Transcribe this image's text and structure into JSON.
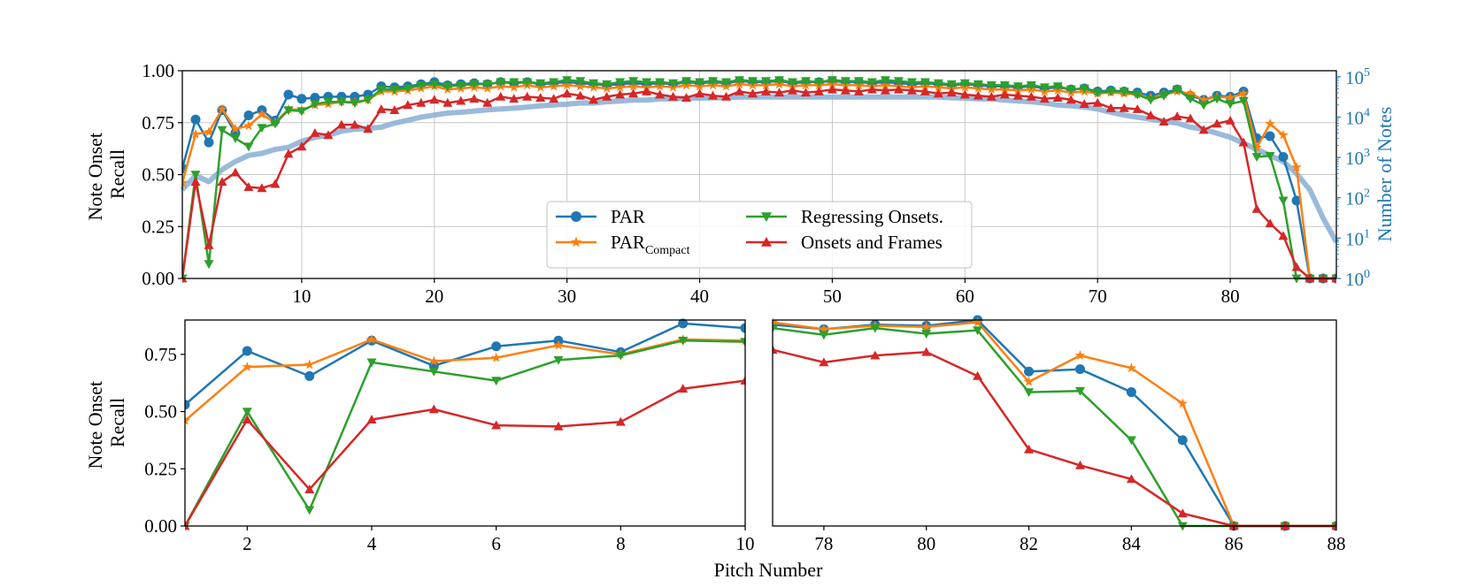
{
  "colors": {
    "par": "#1f77b4",
    "par_compact": "#ff7f0e",
    "regressing": "#2ca02c",
    "onsets_frames": "#d62728",
    "note_count": "#8fb3d6",
    "grid": "#c8c8c8"
  },
  "chart_data": [
    {
      "type": "line",
      "title": "",
      "xlabel": "",
      "ylabel": "Note Onset Recall",
      "ylabel_lines": [
        "Note Onset",
        "Recall"
      ],
      "y2label": "Number of Notes",
      "xlim": [
        1,
        88
      ],
      "ylim": [
        0,
        1
      ],
      "y2lim": [
        0,
        5.15
      ],
      "grid": true,
      "legend": "lower-center",
      "xticks": [
        10,
        20,
        30,
        40,
        50,
        60,
        70,
        80
      ],
      "yticks": [
        0.0,
        0.25,
        0.5,
        0.75,
        1.0
      ],
      "ytick_labels": [
        "0.00",
        "0.25",
        "0.50",
        "0.75",
        "1.00"
      ],
      "y2ticks": [
        {
          "exponent": 0,
          "base": "10",
          "power": "0"
        },
        {
          "exponent": 1,
          "base": "10",
          "power": "1"
        },
        {
          "exponent": 2,
          "base": "10",
          "power": "2"
        },
        {
          "exponent": 3,
          "base": "10",
          "power": "3"
        },
        {
          "exponent": 4,
          "base": "10",
          "power": "4"
        },
        {
          "exponent": 5,
          "base": "10",
          "power": "5"
        }
      ],
      "legend_entries": [
        {
          "key": "par",
          "label": "PAR",
          "sub": "",
          "marker": "circle"
        },
        {
          "key": "par_compact",
          "label": "PAR",
          "sub": "Compact",
          "marker": "star"
        },
        {
          "key": "regressing",
          "label": "Regressing Onsets.",
          "sub": "",
          "marker": "triangle-down"
        },
        {
          "key": "onsets_frames",
          "label": "Onsets and Frames",
          "sub": "",
          "marker": "triangle-up"
        }
      ],
      "note_count_log10": [
        2.2,
        2.55,
        2.4,
        2.7,
        2.9,
        3.05,
        3.1,
        3.2,
        3.25,
        3.4,
        3.5,
        3.55,
        3.65,
        3.7,
        3.72,
        3.75,
        3.85,
        3.92,
        4.0,
        4.05,
        4.1,
        4.12,
        4.15,
        4.18,
        4.2,
        4.22,
        4.25,
        4.28,
        4.3,
        4.32,
        4.35,
        4.35,
        4.38,
        4.4,
        4.42,
        4.42,
        4.45,
        4.45,
        4.47,
        4.47,
        4.48,
        4.48,
        4.5,
        4.5,
        4.5,
        4.5,
        4.5,
        4.5,
        4.5,
        4.5,
        4.5,
        4.5,
        4.5,
        4.5,
        4.5,
        4.5,
        4.5,
        4.5,
        4.48,
        4.47,
        4.45,
        4.45,
        4.42,
        4.4,
        4.38,
        4.35,
        4.3,
        4.28,
        4.25,
        4.2,
        4.12,
        4.05,
        4.0,
        3.95,
        3.9,
        3.85,
        3.75,
        3.7,
        3.6,
        3.5,
        3.35,
        3.2,
        3.05,
        2.9,
        2.6,
        2.2,
        1.5,
        0.9
      ]
    },
    {
      "type": "line",
      "title": "",
      "xlabel": "",
      "ylabel": "Note Onset Recall",
      "ylabel_lines": [
        "Note Onset",
        "Recall"
      ],
      "xlim": [
        1,
        10
      ],
      "ylim": [
        0,
        0.9
      ],
      "grid": false,
      "xticks": [
        2,
        4,
        6,
        8,
        10
      ],
      "yticks": [
        0.0,
        0.25,
        0.5,
        0.75
      ],
      "ytick_labels": [
        "0.00",
        "0.25",
        "0.50",
        "0.75"
      ]
    },
    {
      "type": "line",
      "title": "",
      "xlabel": "Pitch Number",
      "ylabel": "",
      "xlim": [
        77,
        88
      ],
      "ylim": [
        0,
        0.9
      ],
      "grid": false,
      "xticks": [
        78,
        80,
        82,
        84,
        86,
        88
      ],
      "yticks": [],
      "ytick_labels": []
    }
  ],
  "series": {
    "pitch": [
      1,
      2,
      3,
      4,
      5,
      6,
      7,
      8,
      9,
      10,
      11,
      12,
      13,
      14,
      15,
      16,
      17,
      18,
      19,
      20,
      21,
      22,
      23,
      24,
      25,
      26,
      27,
      28,
      29,
      30,
      31,
      32,
      33,
      34,
      35,
      36,
      37,
      38,
      39,
      40,
      41,
      42,
      43,
      44,
      45,
      46,
      47,
      48,
      49,
      50,
      51,
      52,
      53,
      54,
      55,
      56,
      57,
      58,
      59,
      60,
      61,
      62,
      63,
      64,
      65,
      66,
      67,
      68,
      69,
      70,
      71,
      72,
      73,
      74,
      75,
      76,
      77,
      78,
      79,
      80,
      81,
      82,
      83,
      84,
      85,
      86,
      87,
      88
    ],
    "par": [
      0.53,
      0.765,
      0.655,
      0.81,
      0.7,
      0.785,
      0.81,
      0.76,
      0.885,
      0.865,
      0.87,
      0.875,
      0.875,
      0.875,
      0.885,
      0.925,
      0.92,
      0.925,
      0.935,
      0.945,
      0.93,
      0.935,
      0.94,
      0.935,
      0.945,
      0.94,
      0.945,
      0.935,
      0.94,
      0.945,
      0.94,
      0.935,
      0.93,
      0.935,
      0.94,
      0.935,
      0.94,
      0.935,
      0.945,
      0.94,
      0.945,
      0.94,
      0.95,
      0.945,
      0.945,
      0.95,
      0.94,
      0.945,
      0.945,
      0.95,
      0.945,
      0.945,
      0.94,
      0.945,
      0.94,
      0.935,
      0.94,
      0.935,
      0.93,
      0.935,
      0.93,
      0.925,
      0.925,
      0.92,
      0.925,
      0.915,
      0.92,
      0.91,
      0.915,
      0.9,
      0.905,
      0.9,
      0.895,
      0.88,
      0.895,
      0.91,
      0.88,
      0.86,
      0.88,
      0.875,
      0.9,
      0.675,
      0.685,
      0.585,
      0.375,
      0.0,
      0.0,
      0.0
    ],
    "par_compact": [
      0.46,
      0.695,
      0.705,
      0.815,
      0.72,
      0.735,
      0.79,
      0.75,
      0.815,
      0.81,
      0.835,
      0.84,
      0.85,
      0.85,
      0.86,
      0.9,
      0.9,
      0.905,
      0.915,
      0.925,
      0.91,
      0.915,
      0.92,
      0.915,
      0.925,
      0.92,
      0.93,
      0.92,
      0.925,
      0.93,
      0.925,
      0.92,
      0.915,
      0.92,
      0.925,
      0.92,
      0.925,
      0.92,
      0.93,
      0.925,
      0.93,
      0.925,
      0.935,
      0.93,
      0.93,
      0.935,
      0.925,
      0.93,
      0.93,
      0.935,
      0.93,
      0.93,
      0.925,
      0.93,
      0.925,
      0.92,
      0.925,
      0.92,
      0.915,
      0.92,
      0.915,
      0.91,
      0.91,
      0.905,
      0.91,
      0.9,
      0.905,
      0.895,
      0.9,
      0.89,
      0.895,
      0.89,
      0.885,
      0.87,
      0.885,
      0.9,
      0.89,
      0.86,
      0.875,
      0.87,
      0.89,
      0.63,
      0.745,
      0.69,
      0.535,
      0.0,
      0.0,
      0.0
    ],
    "regressing": [
      0.0,
      0.5,
      0.07,
      0.715,
      0.675,
      0.635,
      0.725,
      0.745,
      0.81,
      0.805,
      0.84,
      0.85,
      0.85,
      0.845,
      0.86,
      0.91,
      0.91,
      0.915,
      0.93,
      0.935,
      0.925,
      0.93,
      0.935,
      0.935,
      0.945,
      0.945,
      0.945,
      0.94,
      0.945,
      0.955,
      0.95,
      0.94,
      0.935,
      0.945,
      0.95,
      0.945,
      0.945,
      0.94,
      0.95,
      0.945,
      0.95,
      0.945,
      0.955,
      0.95,
      0.95,
      0.955,
      0.945,
      0.95,
      0.945,
      0.955,
      0.95,
      0.95,
      0.945,
      0.955,
      0.95,
      0.945,
      0.945,
      0.94,
      0.935,
      0.94,
      0.935,
      0.93,
      0.93,
      0.925,
      0.93,
      0.92,
      0.925,
      0.91,
      0.915,
      0.895,
      0.9,
      0.9,
      0.885,
      0.86,
      0.88,
      0.91,
      0.865,
      0.835,
      0.865,
      0.84,
      0.855,
      0.585,
      0.59,
      0.375,
      0.0,
      0.0,
      0.0,
      0.0
    ],
    "onsets_frames": [
      0.0,
      0.465,
      0.16,
      0.465,
      0.51,
      0.44,
      0.435,
      0.455,
      0.6,
      0.635,
      0.7,
      0.69,
      0.74,
      0.74,
      0.72,
      0.815,
      0.81,
      0.835,
      0.845,
      0.86,
      0.845,
      0.855,
      0.865,
      0.845,
      0.875,
      0.865,
      0.875,
      0.87,
      0.865,
      0.89,
      0.88,
      0.86,
      0.875,
      0.885,
      0.89,
      0.9,
      0.885,
      0.875,
      0.87,
      0.89,
      0.88,
      0.875,
      0.9,
      0.89,
      0.9,
      0.895,
      0.905,
      0.895,
      0.9,
      0.91,
      0.905,
      0.9,
      0.91,
      0.905,
      0.91,
      0.905,
      0.9,
      0.89,
      0.895,
      0.885,
      0.88,
      0.875,
      0.885,
      0.88,
      0.875,
      0.865,
      0.87,
      0.86,
      0.84,
      0.845,
      0.82,
      0.82,
      0.815,
      0.785,
      0.755,
      0.78,
      0.77,
      0.715,
      0.745,
      0.76,
      0.655,
      0.335,
      0.265,
      0.205,
      0.055,
      0.0,
      0.0,
      0.0
    ]
  }
}
